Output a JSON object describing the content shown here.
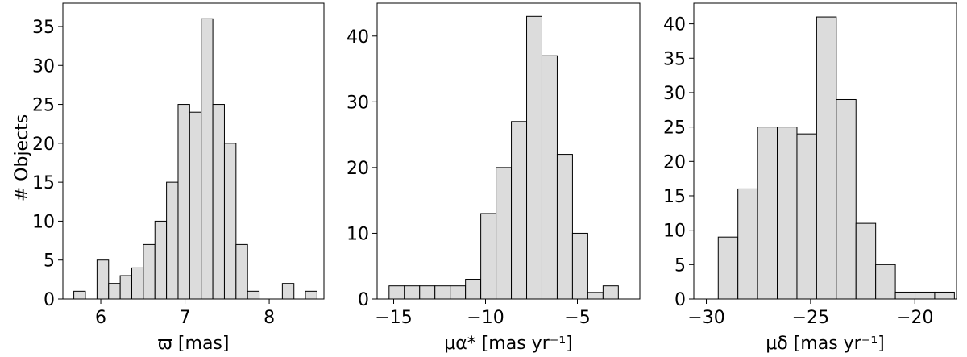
{
  "figure": {
    "ylabel": "# Objects"
  },
  "chart_data": [
    {
      "type": "bar",
      "xlabel": "ϖ [mas]",
      "ylabel": "# Objects",
      "xlim": [
        5.55,
        8.65
      ],
      "ylim": [
        0,
        38.0
      ],
      "xticks": [
        6,
        7,
        8
      ],
      "yticks": [
        0,
        5,
        10,
        15,
        20,
        25,
        30,
        35
      ],
      "bin_width": 0.1375,
      "bins": [
        {
          "x0": 5.68,
          "value": 1
        },
        {
          "x0": 5.9555,
          "value": 5
        },
        {
          "x0": 6.093,
          "value": 2
        },
        {
          "x0": 6.2305,
          "value": 3
        },
        {
          "x0": 6.368,
          "value": 4
        },
        {
          "x0": 6.5055,
          "value": 7
        },
        {
          "x0": 6.643,
          "value": 10
        },
        {
          "x0": 6.7805,
          "value": 15
        },
        {
          "x0": 6.918,
          "value": 25
        },
        {
          "x0": 7.0555,
          "value": 24
        },
        {
          "x0": 7.193,
          "value": 36
        },
        {
          "x0": 7.3305,
          "value": 25
        },
        {
          "x0": 7.468,
          "value": 20
        },
        {
          "x0": 7.6055,
          "value": 7
        },
        {
          "x0": 7.743,
          "value": 1
        },
        {
          "x0": 8.156,
          "value": 2
        },
        {
          "x0": 8.43,
          "value": 1
        }
      ]
    },
    {
      "type": "bar",
      "xlabel": "μα* [mas yr⁻¹]",
      "xlim": [
        -15.9,
        -1.6
      ],
      "ylim": [
        0,
        45.0
      ],
      "xticks": [
        -15,
        -10,
        -5
      ],
      "yticks": [
        0,
        10,
        20,
        30,
        40
      ],
      "bin_width": 0.832,
      "bins": [
        {
          "x0": -15.25,
          "value": 2
        },
        {
          "x0": -14.418,
          "value": 2
        },
        {
          "x0": -13.586,
          "value": 2
        },
        {
          "x0": -12.754,
          "value": 2
        },
        {
          "x0": -11.922,
          "value": 2
        },
        {
          "x0": -11.09,
          "value": 3
        },
        {
          "x0": -10.258,
          "value": 13
        },
        {
          "x0": -9.426,
          "value": 20
        },
        {
          "x0": -8.594,
          "value": 27
        },
        {
          "x0": -7.762,
          "value": 43
        },
        {
          "x0": -6.93,
          "value": 37
        },
        {
          "x0": -6.098,
          "value": 22
        },
        {
          "x0": -5.266,
          "value": 10
        },
        {
          "x0": -4.434,
          "value": 1
        },
        {
          "x0": -3.602,
          "value": 2
        }
      ]
    },
    {
      "type": "bar",
      "xlabel": "μδ [mas yr⁻¹]",
      "xlim": [
        -30.6,
        -18.0
      ],
      "ylim": [
        0,
        43.0
      ],
      "xticks": [
        -30,
        -25,
        -20
      ],
      "yticks": [
        0,
        5,
        10,
        15,
        20,
        25,
        30,
        35,
        40
      ],
      "bin_width": 0.944,
      "bins": [
        {
          "x0": -29.43,
          "value": 9
        },
        {
          "x0": -28.486,
          "value": 16
        },
        {
          "x0": -27.542,
          "value": 25
        },
        {
          "x0": -26.598,
          "value": 25
        },
        {
          "x0": -25.654,
          "value": 24
        },
        {
          "x0": -24.71,
          "value": 41
        },
        {
          "x0": -23.766,
          "value": 29
        },
        {
          "x0": -22.822,
          "value": 11
        },
        {
          "x0": -21.878,
          "value": 5
        },
        {
          "x0": -20.934,
          "value": 1
        },
        {
          "x0": -19.99,
          "value": 1
        },
        {
          "x0": -19.046,
          "value": 0
        },
        {
          "x0": -19.046,
          "value": 1
        }
      ]
    }
  ]
}
